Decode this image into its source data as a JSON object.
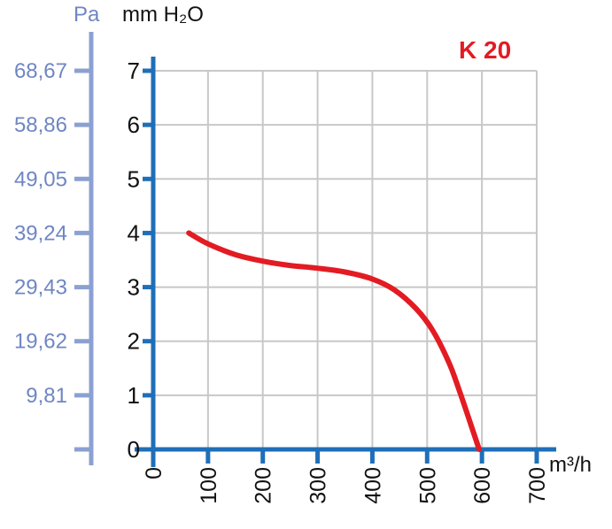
{
  "chart_data": {
    "type": "line",
    "title": "K 20",
    "xlabel": "m³/h",
    "ylabel": "mm H₂O",
    "secondary_ylabel": "Pa",
    "xlim": [
      0,
      700
    ],
    "ylim": [
      0,
      7
    ],
    "grid": true,
    "x_ticks": [
      "0",
      "100",
      "200",
      "300",
      "400",
      "500",
      "600",
      "700"
    ],
    "x_tick_values": [
      0,
      100,
      200,
      300,
      400,
      500,
      600,
      700
    ],
    "y_ticks": [
      "0",
      "1",
      "2",
      "3",
      "4",
      "5",
      "6",
      "7"
    ],
    "y_tick_values": [
      0,
      1,
      2,
      3,
      4,
      5,
      6,
      7
    ],
    "secondary_y_ticks": [
      "9,81",
      "19,62",
      "29,43",
      "39,24",
      "49,05",
      "58,86",
      "68,67"
    ],
    "secondary_y_tick_values": [
      1,
      2,
      3,
      4,
      5,
      6,
      7
    ],
    "series": [
      {
        "name": "K 20",
        "color": "#e31b23",
        "x": [
          65,
          100,
          150,
          200,
          250,
          300,
          350,
          400,
          440,
          480,
          510,
          540,
          560,
          580,
          595
        ],
        "y": [
          4.0,
          3.8,
          3.6,
          3.48,
          3.4,
          3.35,
          3.28,
          3.15,
          2.95,
          2.6,
          2.2,
          1.6,
          1.05,
          0.45,
          0.0
        ]
      }
    ]
  }
}
